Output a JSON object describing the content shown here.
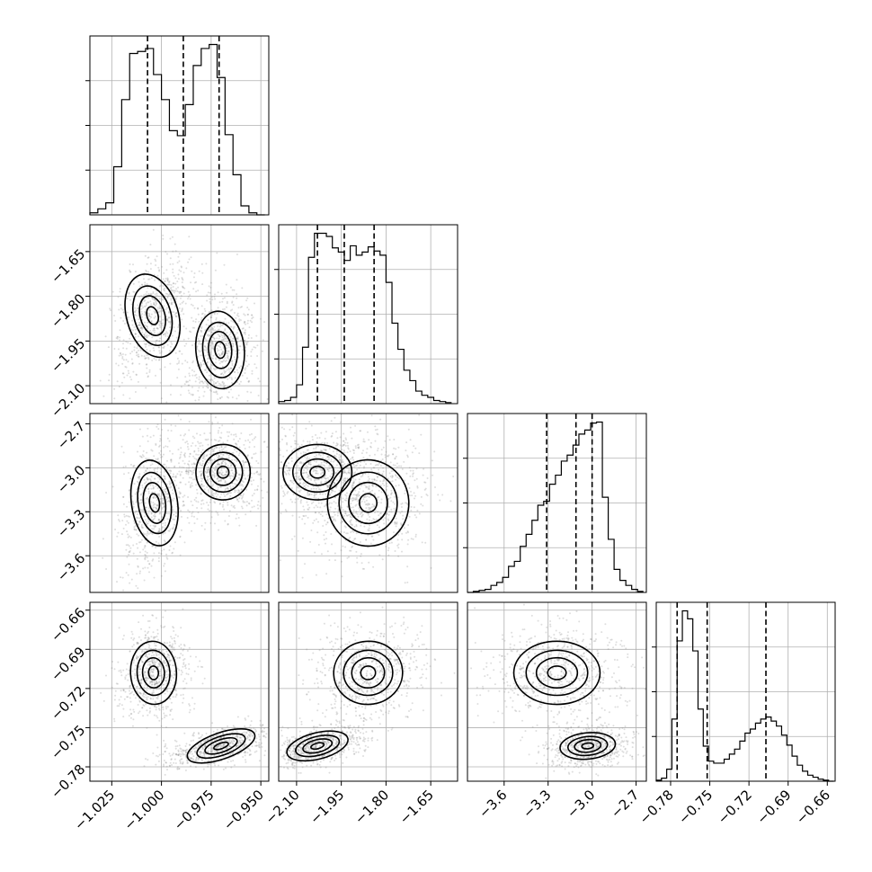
{
  "chart_data": {
    "type": "corner",
    "parameters": [
      {
        "ticks": [
          "−1.025",
          "−1.000",
          "−0.975",
          "−0.950"
        ],
        "tick_values": [
          -1.025,
          -1.0,
          -0.975,
          -0.95
        ],
        "range": [
          -1.036,
          -0.946
        ],
        "quantiles": [
          -1.007,
          -0.989,
          -0.971
        ]
      },
      {
        "ticks": [
          "−2.10",
          "−1.95",
          "−1.80",
          "−1.65"
        ],
        "tick_values": [
          -2.1,
          -1.95,
          -1.8,
          -1.65
        ],
        "range": [
          -2.16,
          -1.56
        ],
        "quantiles": [
          -2.03,
          -1.94,
          -1.84
        ]
      },
      {
        "ticks": [
          "−3.6",
          "−3.3",
          "−3.0",
          "−2.7"
        ],
        "tick_values": [
          -3.6,
          -3.3,
          -3.0,
          -2.7
        ],
        "range": [
          -3.85,
          -2.63
        ],
        "quantiles": [
          -3.31,
          -3.11,
          -3.0
        ]
      },
      {
        "ticks": [
          "−0.78",
          "−0.75",
          "−0.72",
          "−0.69",
          "−0.66"
        ],
        "tick_values": [
          -0.78,
          -0.75,
          -0.72,
          -0.69,
          -0.66
        ],
        "range": [
          -0.791,
          -0.654
        ],
        "quantiles": [
          -0.775,
          -0.752,
          -0.707
        ]
      }
    ],
    "histograms": [
      {
        "x": [
          -1.034,
          -1.03,
          -1.026,
          -1.022,
          -1.018,
          -1.014,
          -1.01,
          -1.006,
          -1.002,
          -0.998,
          -0.994,
          -0.99,
          -0.986,
          -0.982,
          -0.978,
          -0.974,
          -0.97,
          -0.966,
          -0.962,
          -0.958,
          -0.954,
          -0.95
        ],
        "y": [
          2,
          6,
          12,
          48,
          115,
          161,
          163,
          166,
          140,
          115,
          84,
          79,
          110,
          149,
          166,
          170,
          137,
          80,
          40,
          9,
          2,
          0
        ]
      },
      {
        "x": [
          -2.15,
          -2.13,
          -2.11,
          -2.09,
          -2.07,
          -2.05,
          -2.03,
          -2.01,
          -1.99,
          -1.97,
          -1.95,
          -1.93,
          -1.91,
          -1.89,
          -1.87,
          -1.85,
          -1.83,
          -1.81,
          -1.79,
          -1.77,
          -1.75,
          -1.73,
          -1.71,
          -1.69,
          -1.67,
          -1.65,
          -1.63,
          -1.61,
          -1.59
        ],
        "y": [
          2,
          3,
          6,
          18,
          54,
          140,
          163,
          163,
          160,
          149,
          145,
          137,
          151,
          142,
          145,
          150,
          146,
          142,
          116,
          77,
          52,
          32,
          22,
          12,
          8,
          6,
          3,
          2,
          1
        ]
      },
      {
        "x": [
          -3.83,
          -3.79,
          -3.75,
          -3.71,
          -3.67,
          -3.63,
          -3.59,
          -3.55,
          -3.51,
          -3.47,
          -3.43,
          -3.39,
          -3.35,
          -3.31,
          -3.27,
          -3.23,
          -3.19,
          -3.15,
          -3.11,
          -3.07,
          -3.03,
          -2.99,
          -2.95,
          -2.91,
          -2.87,
          -2.83,
          -2.79,
          -2.75,
          -2.71,
          -2.67
        ],
        "y": [
          0,
          1,
          2,
          3,
          7,
          10,
          15,
          26,
          31,
          46,
          58,
          72,
          87,
          91,
          108,
          117,
          131,
          137,
          147,
          158,
          162,
          169,
          170,
          95,
          53,
          23,
          12,
          7,
          3,
          1
        ]
      },
      {
        "x": [
          -0.789,
          -0.785,
          -0.781,
          -0.777,
          -0.773,
          -0.769,
          -0.765,
          -0.761,
          -0.757,
          -0.753,
          -0.749,
          -0.745,
          -0.741,
          -0.737,
          -0.733,
          -0.729,
          -0.725,
          -0.721,
          -0.717,
          -0.713,
          -0.709,
          -0.705,
          -0.701,
          -0.697,
          -0.693,
          -0.689,
          -0.685,
          -0.681,
          -0.677,
          -0.673,
          -0.669,
          -0.665,
          -0.661,
          -0.657
        ],
        "y": [
          1,
          3,
          12,
          62,
          140,
          170,
          162,
          130,
          72,
          35,
          20,
          18,
          18,
          22,
          27,
          32,
          40,
          48,
          52,
          58,
          62,
          64,
          60,
          55,
          46,
          36,
          25,
          16,
          10,
          6,
          4,
          2,
          1,
          0
        ]
      }
    ],
    "panels": [
      {
        "row": 1,
        "col": 0,
        "modes": [
          {
            "x": -1.0045,
            "y": -1.865,
            "sx": 0.0062,
            "sy": 0.068,
            "rho": 0.45
          },
          {
            "x": -0.9705,
            "y": -1.98,
            "sx": 0.0058,
            "sy": 0.062,
            "rho": 0.15
          }
        ]
      },
      {
        "row": 2,
        "col": 0,
        "modes": [
          {
            "x": -1.0035,
            "y": -3.24,
            "sx": 0.0055,
            "sy": 0.14,
            "rho": 0.25
          },
          {
            "x": -0.969,
            "y": -3.03,
            "sx": 0.0065,
            "sy": 0.09,
            "rho": -0.1
          }
        ]
      },
      {
        "row": 2,
        "col": 1,
        "modes": [
          {
            "x": -2.03,
            "y": -3.03,
            "sx": 0.055,
            "sy": 0.09,
            "rho": 0.0
          },
          {
            "x": -1.86,
            "y": -3.24,
            "sx": 0.065,
            "sy": 0.14,
            "rho": 0.1
          }
        ]
      },
      {
        "row": 3,
        "col": 0,
        "modes": [
          {
            "x": -1.004,
            "y": -0.708,
            "sx": 0.0055,
            "sy": 0.0115,
            "rho": 0.1
          },
          {
            "x": -0.97,
            "y": -0.764,
            "sx": 0.0085,
            "sy": 0.0048,
            "rho": 0.55
          }
        ]
      },
      {
        "row": 3,
        "col": 1,
        "modes": [
          {
            "x": -2.03,
            "y": -0.764,
            "sx": 0.05,
            "sy": 0.0048,
            "rho": 0.4
          },
          {
            "x": -1.86,
            "y": -0.708,
            "sx": 0.055,
            "sy": 0.0115,
            "rho": 0.1
          }
        ]
      },
      {
        "row": 3,
        "col": 2,
        "modes": [
          {
            "x": -3.24,
            "y": -0.708,
            "sx": 0.14,
            "sy": 0.0115,
            "rho": 0.0
          },
          {
            "x": -3.03,
            "y": -0.764,
            "sx": 0.09,
            "sy": 0.0048,
            "rho": 0.15
          }
        ]
      }
    ],
    "grid": true,
    "colors": {
      "line": "#000000",
      "grid": "#b0b0b0",
      "density": "#000000",
      "scatter": "#888888"
    }
  }
}
